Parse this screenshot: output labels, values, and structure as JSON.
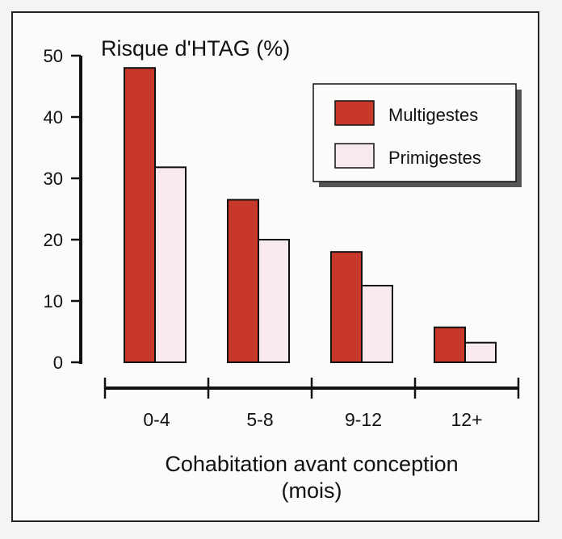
{
  "chart_data": {
    "type": "bar",
    "title": "Risque d'HTAG (%)",
    "ylabel": "Risque d'HTAG (%)",
    "xlabel_line1": "Cohabitation avant conception",
    "xlabel_line2": "(mois)",
    "categories": [
      "0-4",
      "5-8",
      "9-12",
      "12+"
    ],
    "series": [
      {
        "name": "Multigestes",
        "values": [
          48,
          26.5,
          18,
          5.7
        ]
      },
      {
        "name": "Primigestes",
        "values": [
          31.8,
          20,
          12.5,
          3.2
        ]
      }
    ],
    "ylim": [
      0,
      50
    ],
    "yticks": [
      0,
      10,
      20,
      30,
      40,
      50
    ],
    "legend_position": "top-right",
    "grid": false
  },
  "colors": {
    "Multigestes": "#c8382a",
    "Primigestes": "#f7e9ef",
    "outline": "#111111",
    "frame_background": "#fbfbf9"
  }
}
